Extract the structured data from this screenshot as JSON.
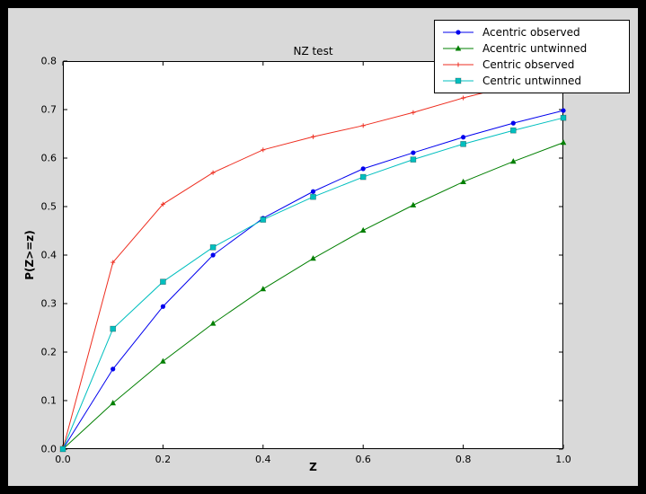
{
  "figure": {
    "frame_color": "#000000",
    "background_color": "#d9d9d9",
    "plot_background_color": "#ffffff"
  },
  "chart_data": {
    "type": "line",
    "title": "NZ test",
    "xlabel": "Z",
    "ylabel": "P(Z>=z)",
    "xlim": [
      0,
      1.0
    ],
    "ylim": [
      0,
      0.8
    ],
    "grid": false,
    "legend_position": "upper right",
    "xticks": [
      0,
      0.2,
      0.4,
      0.6,
      0.8,
      1.0
    ],
    "xtick_labels": [
      "0.0",
      "0.2",
      "0.4",
      "0.6",
      "0.8",
      "1.0"
    ],
    "yticks": [
      0,
      0.1,
      0.2,
      0.3,
      0.4,
      0.5,
      0.6,
      0.7,
      0.8
    ],
    "ytick_labels": [
      "0.0",
      "0.1",
      "0.2",
      "0.3",
      "0.4",
      "0.5",
      "0.6",
      "0.7",
      "0.8"
    ],
    "x": [
      0,
      0.1,
      0.2,
      0.3,
      0.4,
      0.5,
      0.6,
      0.7,
      0.8,
      0.9,
      1.0
    ],
    "series": [
      {
        "name": "Acentric observed",
        "color": "#0000ee",
        "marker": "circle",
        "values": [
          0,
          0.165,
          0.294,
          0.4,
          0.476,
          0.531,
          0.578,
          0.611,
          0.643,
          0.672,
          0.698
        ]
      },
      {
        "name": "Acentric untwinned",
        "color": "#007f00",
        "marker": "triangle",
        "values": [
          0,
          0.095,
          0.181,
          0.259,
          0.33,
          0.393,
          0.451,
          0.503,
          0.551,
          0.593,
          0.632
        ]
      },
      {
        "name": "Centric observed",
        "color": "#ee2e20",
        "marker": "plus",
        "values": [
          0,
          0.385,
          0.505,
          0.57,
          0.617,
          0.644,
          0.667,
          0.694,
          0.724,
          0.75,
          0.776
        ]
      },
      {
        "name": "Centric untwinned",
        "color": "#00bfbf",
        "marker": "square",
        "values": [
          0,
          0.248,
          0.345,
          0.416,
          0.473,
          0.52,
          0.561,
          0.597,
          0.629,
          0.657,
          0.683
        ]
      }
    ]
  }
}
